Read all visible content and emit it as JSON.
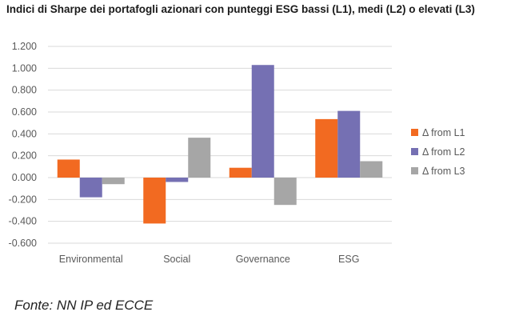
{
  "title": "Indici di Sharpe dei portafogli azionari con punteggi ESG bassi (L1), medi (L2) o elevati (L3)",
  "source": "Fonte: NN IP ed ECCE",
  "chart_data": {
    "type": "bar",
    "title": "Indici di Sharpe dei portafogli azionari con punteggi ESG bassi (L1), medi (L2) o elevati (L3)",
    "categories": [
      "Environmental",
      "Social",
      "Governance",
      "ESG"
    ],
    "series": [
      {
        "name": "Δ from L1",
        "color": "#f26a21",
        "values": [
          0.165,
          -0.42,
          0.09,
          0.535
        ]
      },
      {
        "name": "Δ from L2",
        "color": "#7570b3",
        "values": [
          -0.18,
          -0.04,
          1.03,
          0.61
        ]
      },
      {
        "name": "Δ from L3",
        "color": "#a6a6a6",
        "values": [
          -0.06,
          0.365,
          -0.25,
          0.15
        ]
      }
    ],
    "ylim": [
      -0.6,
      1.2
    ],
    "yticks": [
      "1.200",
      "1.000",
      "0.800",
      "0.600",
      "0.400",
      "0.200",
      "0.000",
      "-0.200",
      "-0.400",
      "-0.600"
    ],
    "ytick_values": [
      1.2,
      1.0,
      0.8,
      0.6,
      0.4,
      0.2,
      0.0,
      -0.2,
      -0.4,
      -0.6
    ],
    "grid": true,
    "legend_position": "right"
  }
}
